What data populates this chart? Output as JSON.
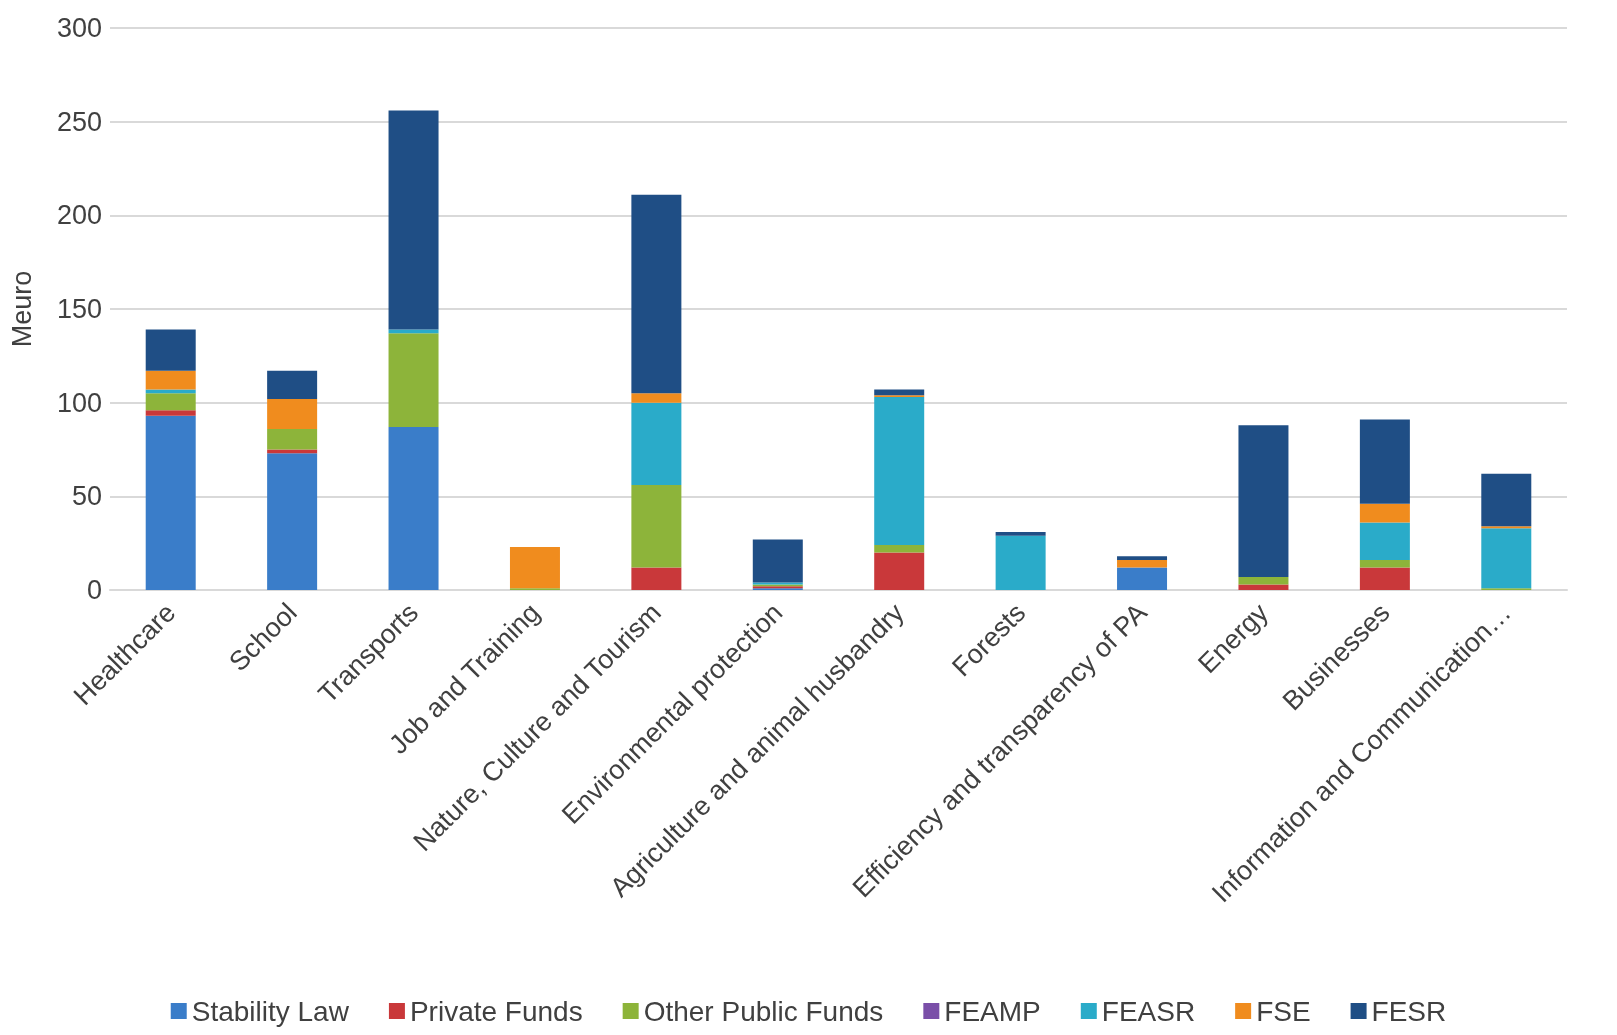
{
  "chart_data": {
    "type": "bar",
    "stacked": true,
    "ylabel": "Meuro",
    "categories": [
      "Healthcare",
      "School",
      "Transports",
      "Job and Training",
      "Nature, Culture and Tourism",
      "Environmental protection",
      "Agriculture and animal husbandry",
      "Forests",
      "Efficiency and transparency of PA",
      "Energy",
      "Businesses",
      "Information and Communication…"
    ],
    "series": [
      {
        "name": "Stability Law",
        "color": "#3a7dc9",
        "values": [
          93,
          73,
          87,
          0,
          0,
          1,
          0,
          0,
          12,
          0,
          0,
          0
        ]
      },
      {
        "name": "Private Funds",
        "color": "#c9383a",
        "values": [
          3,
          2,
          0,
          0,
          12,
          1,
          20,
          0,
          0,
          3,
          12,
          0
        ]
      },
      {
        "name": "Other Public Funds",
        "color": "#8db43a",
        "values": [
          9,
          11,
          50,
          1,
          44,
          1,
          4,
          0,
          0,
          4,
          4,
          1
        ]
      },
      {
        "name": "FEAMP",
        "color": "#7a4fa8",
        "values": [
          0,
          0,
          0,
          0,
          0,
          0,
          0,
          0,
          0,
          0,
          0,
          0
        ]
      },
      {
        "name": "FEASR",
        "color": "#2aabc9",
        "values": [
          2,
          0,
          2,
          0,
          44,
          1,
          79,
          29,
          0,
          0,
          20,
          32
        ]
      },
      {
        "name": "FSE",
        "color": "#f08c1e",
        "values": [
          10,
          16,
          0,
          22,
          5,
          0,
          1,
          0,
          4,
          0,
          10,
          1
        ]
      },
      {
        "name": "FESR",
        "color": "#1f4e85",
        "values": [
          22,
          15,
          117,
          0,
          106,
          23,
          3,
          2,
          2,
          81,
          45,
          28
        ]
      }
    ],
    "ylim": [
      0,
      300
    ],
    "yticks": [
      0,
      50,
      100,
      150,
      200,
      250,
      300
    ],
    "grid": "y",
    "legend": "bottom"
  }
}
